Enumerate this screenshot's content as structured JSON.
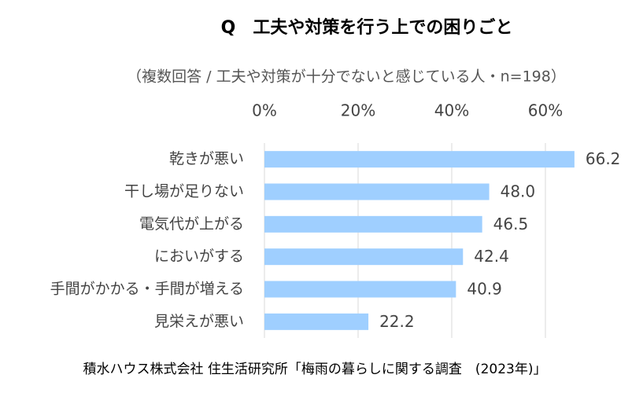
{
  "chart_data": {
    "type": "bar",
    "orientation": "horizontal",
    "title": "Q　工夫や対策を行う上での困りごと",
    "subtitle": "（複数回答 / 工夫や対策が十分でないと感じている人・n=198）",
    "categories": [
      "乾きが悪い",
      "干し場が足りない",
      "電気代が上がる",
      "においがする",
      "手間がかかる・手間が増える",
      "見栄えが悪い"
    ],
    "values": [
      66.2,
      48.0,
      46.5,
      42.4,
      40.9,
      22.2
    ],
    "value_labels": [
      "66.2",
      "48.0",
      "46.5",
      "42.4",
      "40.9",
      "22.2"
    ],
    "color": "#9fcfff",
    "xlim": [
      0,
      70
    ],
    "xticks": [
      {
        "value": 0,
        "label": "0%"
      },
      {
        "value": 20,
        "label": "20%"
      },
      {
        "value": 40,
        "label": "40%"
      },
      {
        "value": 60,
        "label": "60%"
      }
    ],
    "grid": true,
    "source": "積水ハウス株式会社 住生活研究所「梅雨の暮らしに関する調査　(2023年)」"
  }
}
